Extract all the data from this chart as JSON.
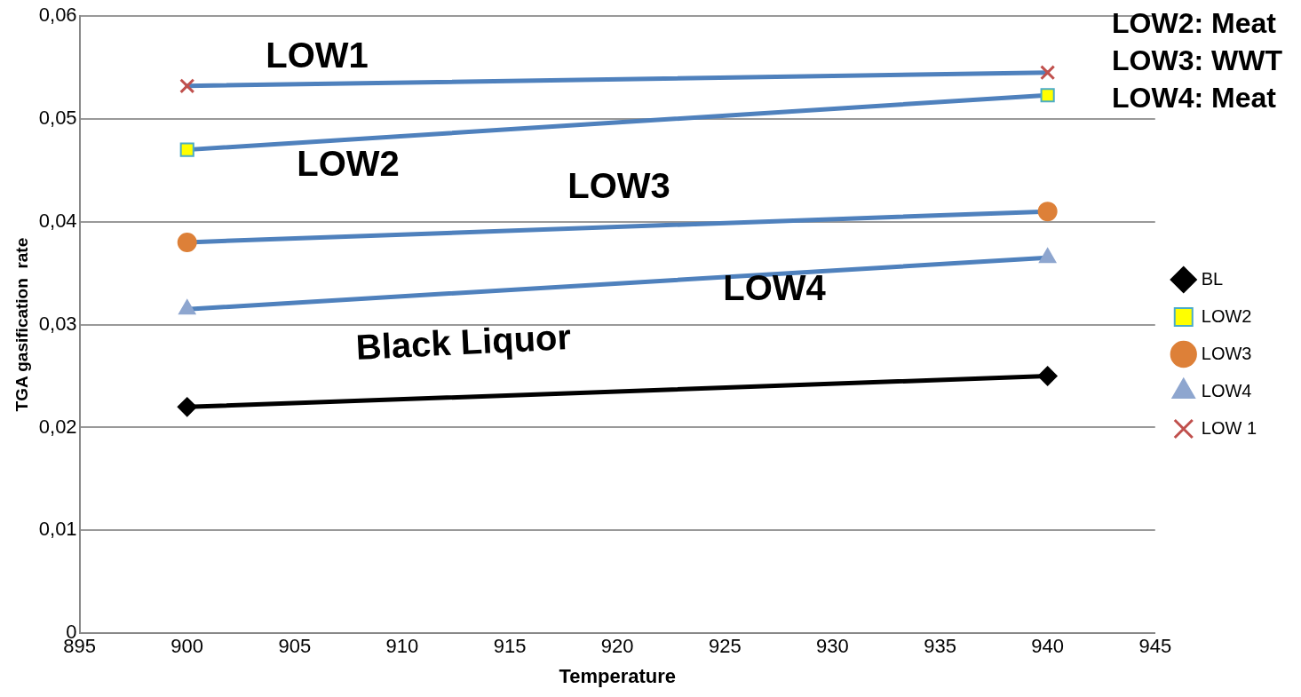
{
  "chart_data": {
    "type": "line",
    "xlabel": "Temperature",
    "ylabel": "TGA gasification  rate",
    "x": [
      900,
      940
    ],
    "xlim": [
      895,
      945
    ],
    "xticks": [
      895,
      900,
      905,
      910,
      915,
      920,
      925,
      930,
      935,
      940,
      945
    ],
    "ylim": [
      0,
      0.06
    ],
    "yticks": [
      0,
      {
        "value": 0.01,
        "label": "0,01"
      },
      {
        "value": 0.02,
        "label": "0,02"
      },
      {
        "value": 0.03,
        "label": "0,03"
      },
      {
        "value": 0.04,
        "label": "0,04"
      },
      {
        "value": 0.05,
        "label": "0,05"
      },
      {
        "value": 0.06,
        "label": "0,06"
      }
    ],
    "grid": "y",
    "legend": "right",
    "line_style": "solid",
    "series": [
      {
        "name": "BL",
        "color": "#000000",
        "colors": [
          "#000000",
          "#000000"
        ],
        "marker": "diamond",
        "values": [
          0.022,
          0.025
        ]
      },
      {
        "name": "LOW2",
        "color": "#4f81bd",
        "colors": [
          "#ffff00",
          "#ffff00"
        ],
        "marker": "square",
        "values": [
          0.047,
          0.0523
        ]
      },
      {
        "name": "LOW3",
        "color": "#4f81bd",
        "colors": [
          "#dd8038",
          "#dd8038"
        ],
        "marker": "circle",
        "values": [
          0.038,
          0.041
        ]
      },
      {
        "name": "LOW4",
        "color": "#4f81bd",
        "colors": [
          "#8ea6cf",
          "#8ea6cf"
        ],
        "marker": "triangle",
        "values": [
          0.0315,
          0.0365
        ]
      },
      {
        "name": "LOW 1",
        "color": "#4f81bd",
        "colors": [
          "#c0504d",
          "#c0504d"
        ],
        "marker": "cross",
        "values": [
          0.0532,
          0.0545
        ]
      }
    ],
    "annotations": [
      "LOW1",
      "LOW2",
      "LOW3",
      "LOW4",
      "Black Liquor",
      "LOW2: Meat",
      "LOW3: WWT",
      "LOW4: Meat"
    ]
  }
}
